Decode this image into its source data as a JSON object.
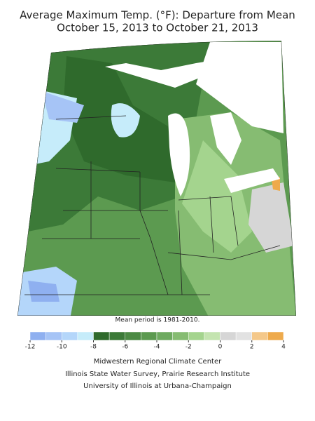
{
  "title": "Average Maximum Temp. (°F): Departure from Mean",
  "subtitle": "October 15, 2013 to October 21, 2013",
  "note": "Mean period is 1981-2010.",
  "legend": {
    "bins": [
      -12,
      -11,
      -10,
      -9,
      -8,
      -7,
      -6,
      -5,
      -4,
      -3,
      -2,
      -1,
      0,
      1,
      2,
      3,
      4
    ],
    "colors": [
      "#8fb0f0",
      "#a6c4f6",
      "#b4d6fa",
      "#c6ecfa",
      "#2f6a2c",
      "#3c7a38",
      "#4c8a44",
      "#5c9a50",
      "#6eaa60",
      "#86bc72",
      "#a4d48e",
      "#c4e4b0",
      "#d6d6d6",
      "#e2e2e2",
      "#f4c88a",
      "#eeaa4c",
      "#e89a30"
    ],
    "ticks": [
      -12,
      -10,
      -8,
      -6,
      -4,
      -2,
      0,
      2,
      4
    ]
  },
  "credits": [
    "Midwestern Regional Climate Center",
    "Illinois State Water Survey, Prairie Research Institute",
    "University of Illinois at Urbana-Champaign"
  ]
}
